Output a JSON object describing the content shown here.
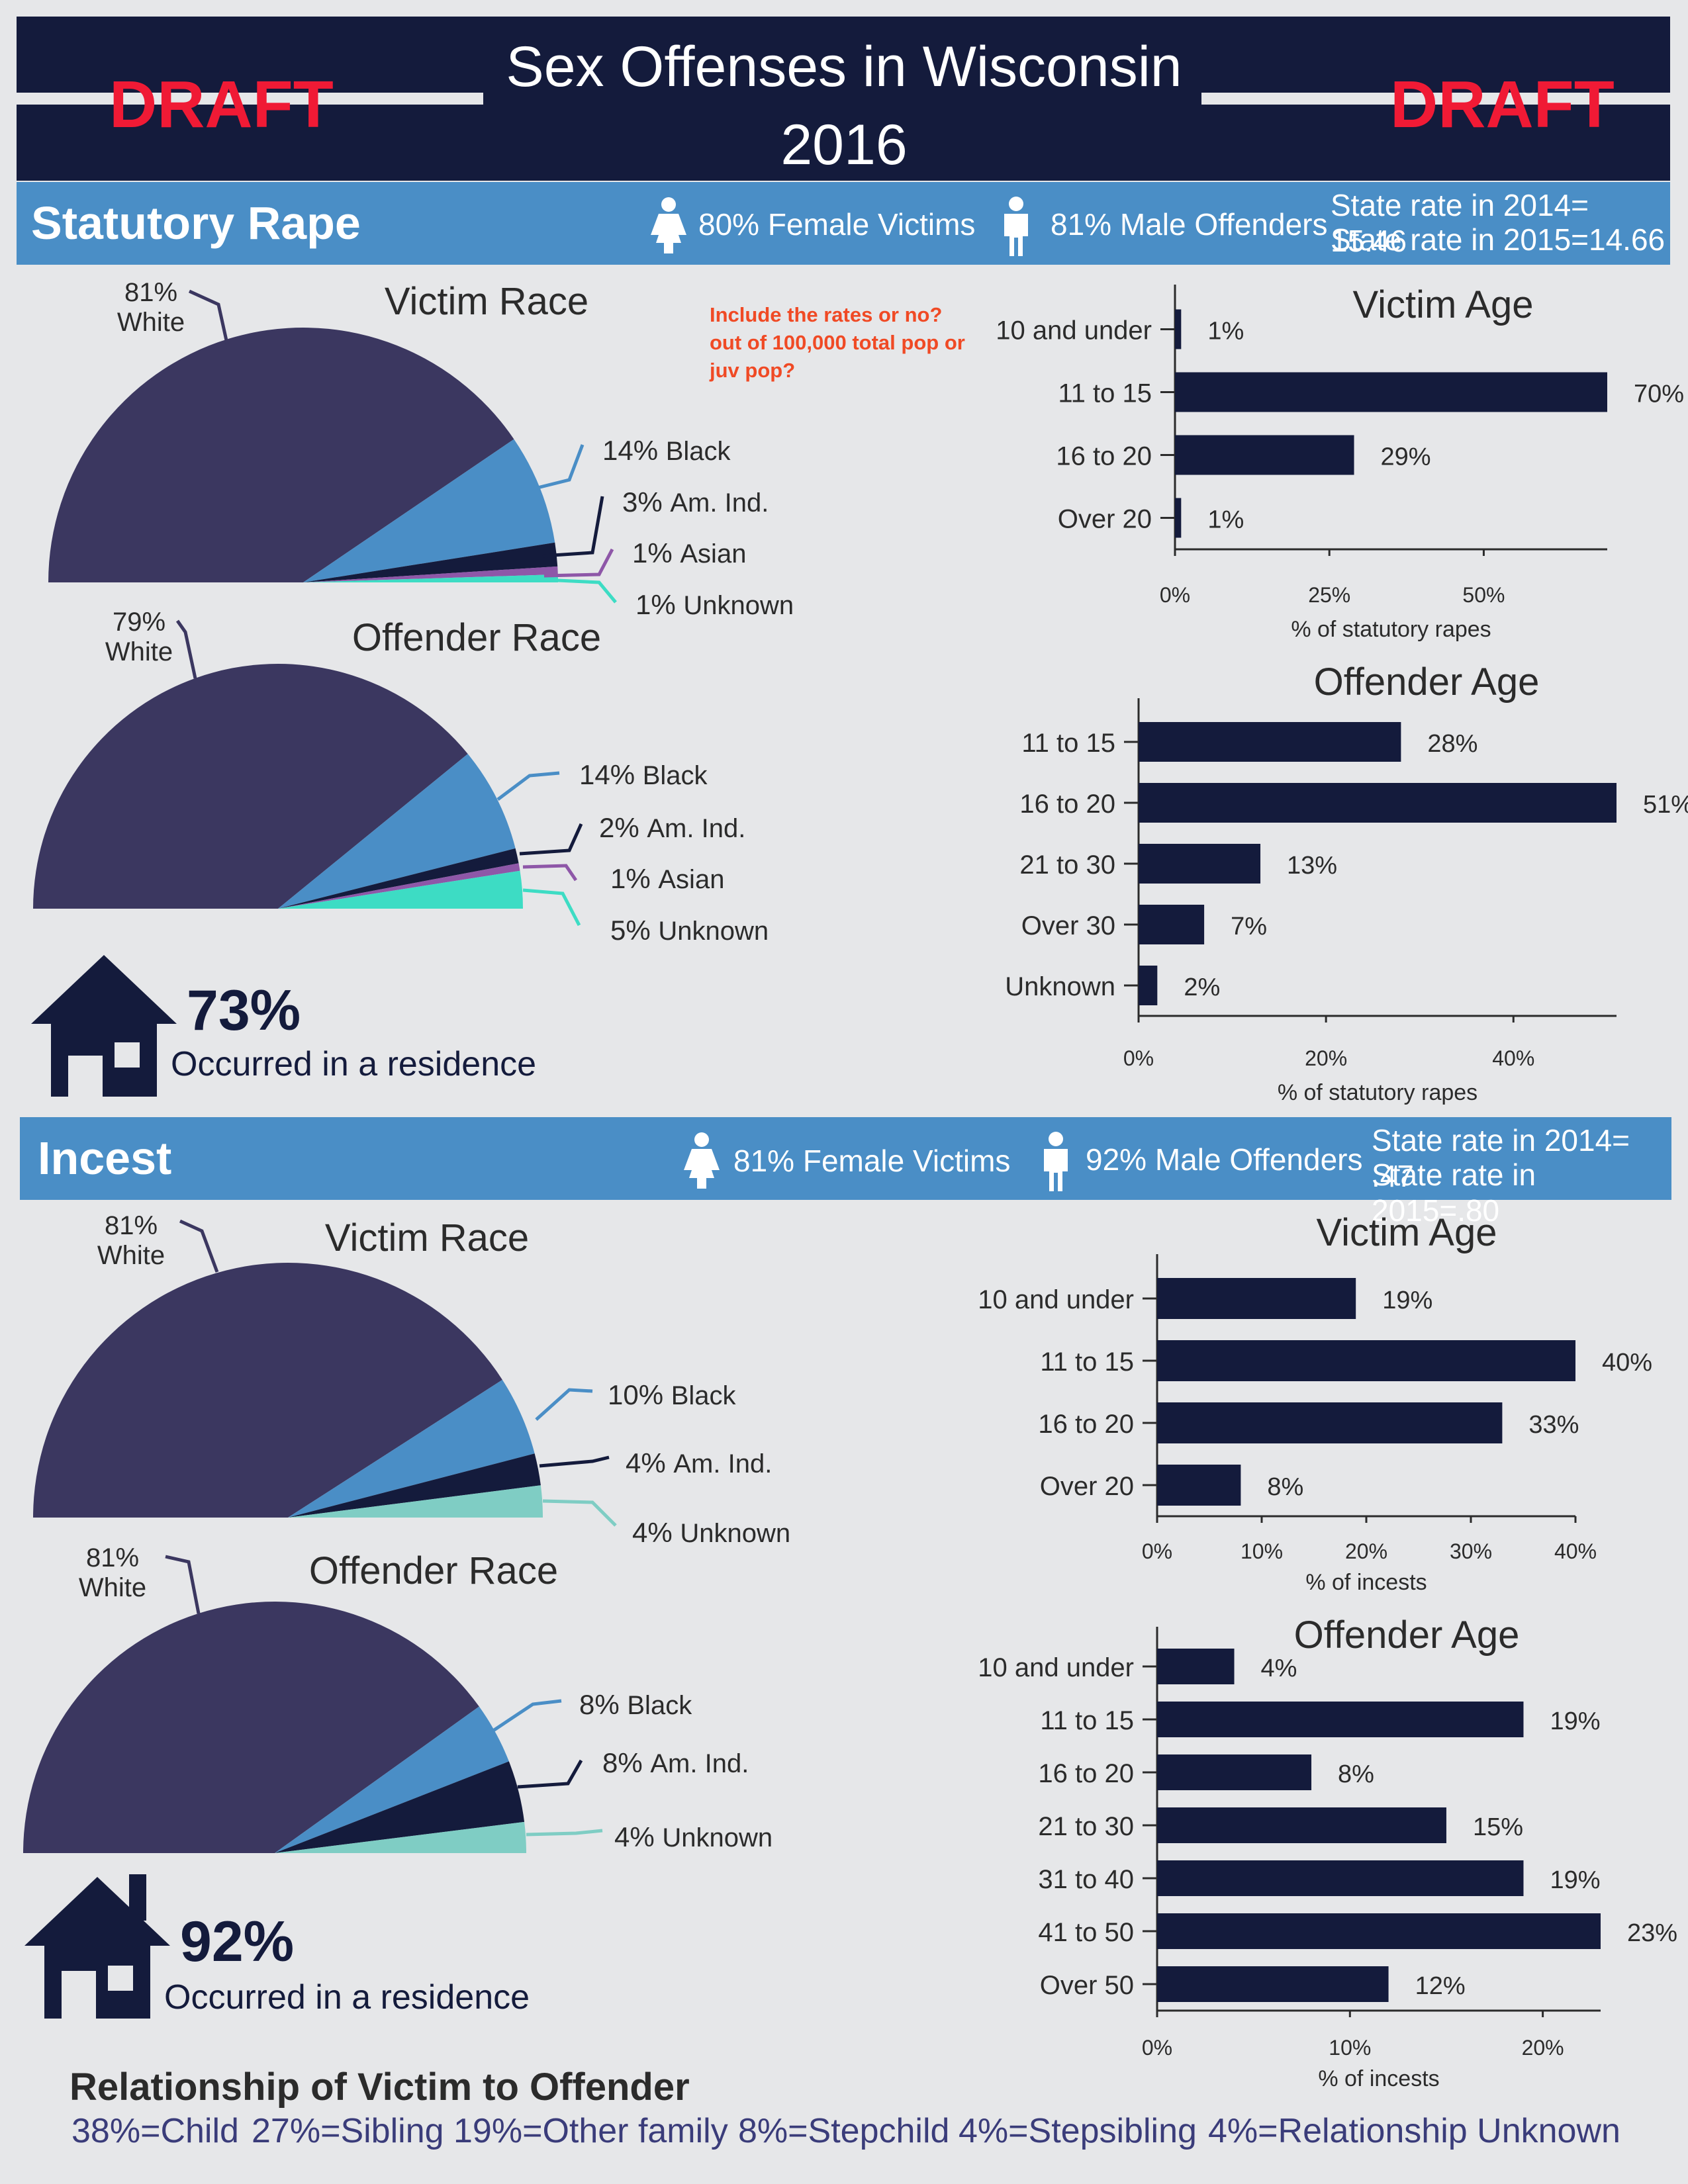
{
  "header": {
    "title_line1": "Sex Offenses in Wisconsin",
    "title_line2": "2016",
    "draft_label": "DRAFT"
  },
  "note": {
    "line1": "Include the rates or no?",
    "line2": "out of 100,000 total pop or",
    "line3": "juv pop?"
  },
  "sections": {
    "statutory": {
      "title": "Statutory Rape",
      "female_victims": "80% Female Victims",
      "male_offenders": "81% Male Offenders",
      "rate_2014": "State rate in 2014= 15.46",
      "rate_2015": "State rate in 2015=14.66",
      "residence_pct": "73%",
      "residence_label": "Occurred in a residence"
    },
    "incest": {
      "title": "Incest",
      "female_victims": "81% Female Victims",
      "male_offenders": "92% Male Offenders",
      "rate_2014": "State rate in 2014= .47",
      "rate_2015": "State rate in 2015=.80",
      "residence_pct": "92%",
      "residence_label": "Occurred in a residence"
    }
  },
  "relationship": {
    "title": "Relationship of Victim to Offender",
    "items": [
      "38%=Child",
      "27%=Sibling",
      "19%=Other family",
      "8%=Stepchild",
      "4%=Stepsibling",
      "4%=Relationship Unknown"
    ]
  },
  "colors": {
    "navy": "#141b3c",
    "band_blue": "#4a8ec6",
    "white_slice": "#3b3760",
    "black_slice": "#4a8ec6",
    "am_ind_slice": "#141b3c",
    "asian_slice": "#8e57a8",
    "unknown_slice": "#3ddcc4",
    "unknown_slice_incest": "#7fcdc4",
    "draft_red": "#f01a35",
    "note_orange": "#f04a25"
  },
  "chart_data": [
    {
      "id": "sr-victim-race",
      "type": "pie",
      "title": "Victim Race",
      "slices": [
        {
          "label": "White",
          "value": 81,
          "display": "81%"
        },
        {
          "label": "Black",
          "value": 14,
          "display": "14%"
        },
        {
          "label": "Am. Ind.",
          "value": 3,
          "display": "3%"
        },
        {
          "label": "Asian",
          "value": 1,
          "display": "1%"
        },
        {
          "label": "Unknown",
          "value": 1,
          "display": "1%"
        }
      ]
    },
    {
      "id": "sr-offender-race",
      "type": "pie",
      "title": "Offender Race",
      "slices": [
        {
          "label": "White",
          "value": 79,
          "display": "79%"
        },
        {
          "label": "Black",
          "value": 14,
          "display": "14%"
        },
        {
          "label": "Am. Ind.",
          "value": 2,
          "display": "2%"
        },
        {
          "label": "Asian",
          "value": 1,
          "display": "1%"
        },
        {
          "label": "Unknown",
          "value": 5,
          "display": "5%"
        }
      ]
    },
    {
      "id": "in-victim-race",
      "type": "pie",
      "title": "Victim Race",
      "slices": [
        {
          "label": "White",
          "value": 81,
          "display": "81%"
        },
        {
          "label": "Black",
          "value": 10,
          "display": "10%"
        },
        {
          "label": "Am. Ind.",
          "value": 4,
          "display": "4%"
        },
        {
          "label": "Unknown",
          "value": 4,
          "display": "4%"
        }
      ]
    },
    {
      "id": "in-offender-race",
      "type": "pie",
      "title": "Offender Race",
      "slices": [
        {
          "label": "White",
          "value": 81,
          "display": "81%"
        },
        {
          "label": "Black",
          "value": 8,
          "display": "8%"
        },
        {
          "label": "Am. Ind.",
          "value": 8,
          "display": "8%"
        },
        {
          "label": "Unknown",
          "value": 4,
          "display": "4%"
        }
      ]
    },
    {
      "id": "sr-victim-age",
      "type": "bar",
      "title": "Victim Age",
      "categories": [
        "10 and under",
        "11 to 15",
        "16 to 20",
        "Over 20"
      ],
      "values": [
        1,
        70,
        29,
        1
      ],
      "value_labels": [
        "1%",
        "70%",
        "29%",
        "1%"
      ],
      "xlabel": "% of statutory rapes",
      "xticks": [
        "0%",
        "25%",
        "50%"
      ],
      "xlim": [
        0,
        70
      ]
    },
    {
      "id": "sr-offender-age",
      "type": "bar",
      "title": "Offender Age",
      "categories": [
        "11 to 15",
        "16 to 20",
        "21 to 30",
        "Over 30",
        "Unknown"
      ],
      "values": [
        28,
        51,
        13,
        7,
        2
      ],
      "value_labels": [
        "28%",
        "51%",
        "13%",
        "7%",
        "2%"
      ],
      "xlabel": "% of statutory rapes",
      "xticks": [
        "0%",
        "20%",
        "40%"
      ],
      "xlim": [
        0,
        51
      ]
    },
    {
      "id": "in-victim-age",
      "type": "bar",
      "title": "Victim Age",
      "categories": [
        "10 and under",
        "11 to 15",
        "16 to 20",
        "Over 20"
      ],
      "values": [
        19,
        40,
        33,
        8
      ],
      "value_labels": [
        "19%",
        "40%",
        "33%",
        "8%"
      ],
      "xlabel": "% of incests",
      "xticks": [
        "0%",
        "10%",
        "20%",
        "30%",
        "40%"
      ],
      "xlim": [
        0,
        40
      ]
    },
    {
      "id": "in-offender-age",
      "type": "bar",
      "title": "Offender Age",
      "categories": [
        "10 and under",
        "11 to 15",
        "16 to 20",
        "21 to 30",
        "31 to 40",
        "41 to 50",
        "Over 50"
      ],
      "values": [
        4,
        19,
        8,
        15,
        19,
        23,
        12
      ],
      "value_labels": [
        "4%",
        "19%",
        "8%",
        "15%",
        "19%",
        "23%",
        "12%"
      ],
      "xlabel": "% of incests",
      "xticks": [
        "0%",
        "10%",
        "20%"
      ],
      "xlim": [
        0,
        23
      ]
    }
  ]
}
